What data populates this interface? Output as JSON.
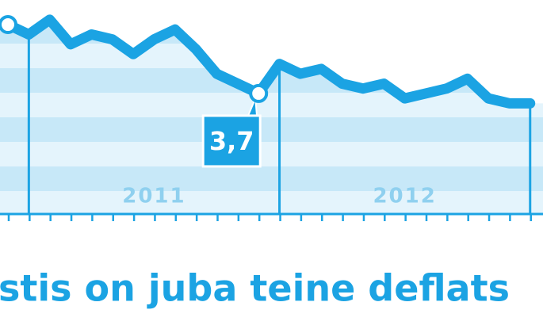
{
  "chart_data": {
    "type": "line",
    "title": "stis on juba teine deflats",
    "categories": [
      null,
      null,
      null,
      null,
      null,
      null,
      null,
      null,
      null,
      null,
      null,
      null,
      null,
      null,
      null,
      null,
      null,
      null,
      null,
      null,
      null,
      null,
      null,
      null,
      null,
      null
    ],
    "values": [
      5.1,
      4.9,
      5.2,
      4.7,
      4.9,
      4.8,
      4.5,
      4.8,
      5.0,
      4.6,
      4.1,
      3.9,
      3.7,
      4.3,
      4.1,
      4.2,
      3.9,
      3.8,
      3.9,
      3.6,
      3.7,
      3.8,
      4.0,
      3.6,
      3.5,
      3.5
    ],
    "value_labels": [
      null,
      null,
      null,
      null,
      null,
      null,
      null,
      null,
      null,
      null,
      null,
      null,
      "3,7",
      null,
      null,
      null,
      null,
      null,
      null,
      null,
      null,
      null,
      null,
      null,
      null,
      null
    ],
    "year_labels": [
      "2011",
      "2012"
    ],
    "color": "#1ba3e3",
    "ylim": [
      1.25,
      5.6
    ]
  }
}
